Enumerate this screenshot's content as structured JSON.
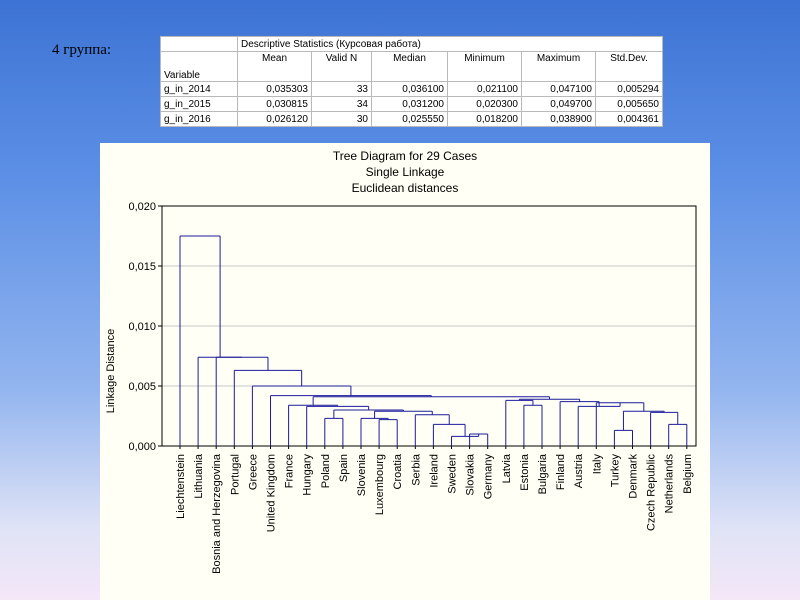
{
  "slide": {
    "label": "4 группа:"
  },
  "stats_table": {
    "caption": "Descriptive Statistics (Курсовая работа)",
    "variable_header": "Variable",
    "columns": [
      "Mean",
      "Valid N",
      "Median",
      "Minimum",
      "Maximum",
      "Std.Dev."
    ],
    "rows": [
      {
        "variable": "g_in_2014",
        "values": [
          "0,035303",
          "33",
          "0,036100",
          "0,021100",
          "0,047100",
          "0,005294"
        ]
      },
      {
        "variable": "g_in_2015",
        "values": [
          "0,030815",
          "34",
          "0,031200",
          "0,020300",
          "0,049700",
          "0,005650"
        ]
      },
      {
        "variable": "g_in_2016",
        "values": [
          "0,026120",
          "30",
          "0,025550",
          "0,018200",
          "0,038900",
          "0,004361"
        ]
      }
    ]
  },
  "chart_data": {
    "type": "dendrogram",
    "title": "Tree Diagram for 29 Cases",
    "subtitle1": "Single Linkage",
    "subtitle2": "Euclidean distances",
    "ylabel": "Linkage Distance",
    "ylim": [
      0,
      0.02
    ],
    "yticks": [
      0,
      0.005,
      0.01,
      0.015,
      0.02
    ],
    "ytick_labels": [
      "0,000",
      "0,005",
      "0,010",
      "0,015",
      "0,020"
    ],
    "grid": true,
    "line_color": "#1c1c9c",
    "leaves": [
      "Liechtenstein",
      "Lithuania",
      "Bosnia and Herzegovina",
      "Portugal",
      "Greece",
      "United Kingdom",
      "France",
      "Hungary",
      "Poland",
      "Spain",
      "Slovenia",
      "Luxembourg",
      "Croatia",
      "Serbia",
      "Ireland",
      "Sweden",
      "Slovakia",
      "Germany",
      "Latvia",
      "Estonia",
      "Bulgaria",
      "Finland",
      "Austria",
      "Italy",
      "Turkey",
      "Denmark",
      "Czech Republic",
      "Netherlands",
      "Belgium"
    ],
    "merges": [
      {
        "left": "Slovakia",
        "right": "Germany",
        "height": 0.001
      },
      {
        "left": "Sweden",
        "right": "n1",
        "height": 0.0008
      },
      {
        "left": "Ireland",
        "right": "n2",
        "height": 0.0018
      },
      {
        "left": "Serbia",
        "right": "n3",
        "height": 0.0026
      },
      {
        "left": "Luxembourg",
        "right": "Croatia",
        "height": 0.0022
      },
      {
        "left": "Slovenia",
        "right": "n5",
        "height": 0.0023
      },
      {
        "left": "n6",
        "right": "n4",
        "height": 0.0029
      },
      {
        "left": "Poland",
        "right": "Spain",
        "height": 0.0023
      },
      {
        "left": "n8",
        "right": "n7",
        "height": 0.003
      },
      {
        "left": "Hungary",
        "right": "n9",
        "height": 0.0033
      },
      {
        "left": "France",
        "right": "n10",
        "height": 0.0034
      },
      {
        "left": "Estonia",
        "right": "Bulgaria",
        "height": 0.0034
      },
      {
        "left": "Latvia",
        "right": "n12",
        "height": 0.0038
      },
      {
        "left": "Turkey",
        "right": "Denmark",
        "height": 0.0013
      },
      {
        "left": "Netherlands",
        "right": "Belgium",
        "height": 0.0018
      },
      {
        "left": "Czech Republic",
        "right": "n15",
        "height": 0.0028
      },
      {
        "left": "n14",
        "right": "n16",
        "height": 0.0029
      },
      {
        "left": "Italy",
        "right": "n17",
        "height": 0.0036
      },
      {
        "left": "Austria",
        "right": "n18",
        "height": 0.0033
      },
      {
        "left": "Finland",
        "right": "n19",
        "height": 0.0037
      },
      {
        "left": "n13",
        "right": "n20",
        "height": 0.0039
      },
      {
        "left": "n11",
        "right": "n21",
        "height": 0.0041
      },
      {
        "left": "United Kingdom",
        "right": "n22",
        "height": 0.0042
      },
      {
        "left": "Greece",
        "right": "n23",
        "height": 0.005
      },
      {
        "left": "Portugal",
        "right": "n24",
        "height": 0.0063
      },
      {
        "left": "Bosnia and Herzegovina",
        "right": "n25",
        "height": 0.0074
      },
      {
        "left": "Lithuania",
        "right": "n26",
        "height": 0.0074
      },
      {
        "left": "Liechtenstein",
        "right": "n27",
        "height": 0.0175
      }
    ]
  }
}
